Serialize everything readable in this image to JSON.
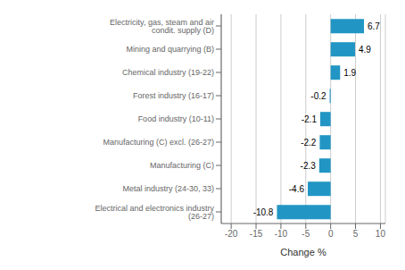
{
  "chart_data": {
    "type": "bar",
    "orientation": "horizontal",
    "categories": [
      "Electrical and electronics industry (26-27)",
      "Metal industry (24-30, 33)",
      "Manufacturing (C)",
      "Manufacturing (C) excl. (26-27)",
      "Food industry (10-11)",
      "Forest industry (16-17)",
      "Chemical industry (19-22)",
      "Mining and quarrying (B)",
      "Electricity, gas, steam and air condit. supply (D)"
    ],
    "values": [
      -10.8,
      -4.6,
      -2.3,
      -2.2,
      -2.1,
      -0.2,
      1.9,
      4.9,
      6.7
    ],
    "color": "#2196c4",
    "xlim": [
      -22,
      11
    ],
    "xticks": [
      -20,
      -15,
      -10,
      -5,
      0,
      5,
      10
    ],
    "xlabel": "Change %",
    "grid": true,
    "data_labels": true
  }
}
